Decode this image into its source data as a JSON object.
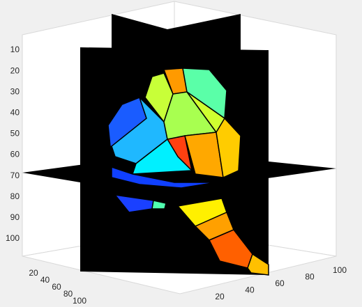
{
  "axes": {
    "z_ticks": [
      "10",
      "20",
      "30",
      "40",
      "50",
      "60",
      "70",
      "80",
      "90",
      "100"
    ],
    "x_ticks": [
      "20",
      "40",
      "60",
      "80",
      "100"
    ],
    "y_ticks": [
      "20",
      "40",
      "60",
      "80",
      "100"
    ]
  }
}
